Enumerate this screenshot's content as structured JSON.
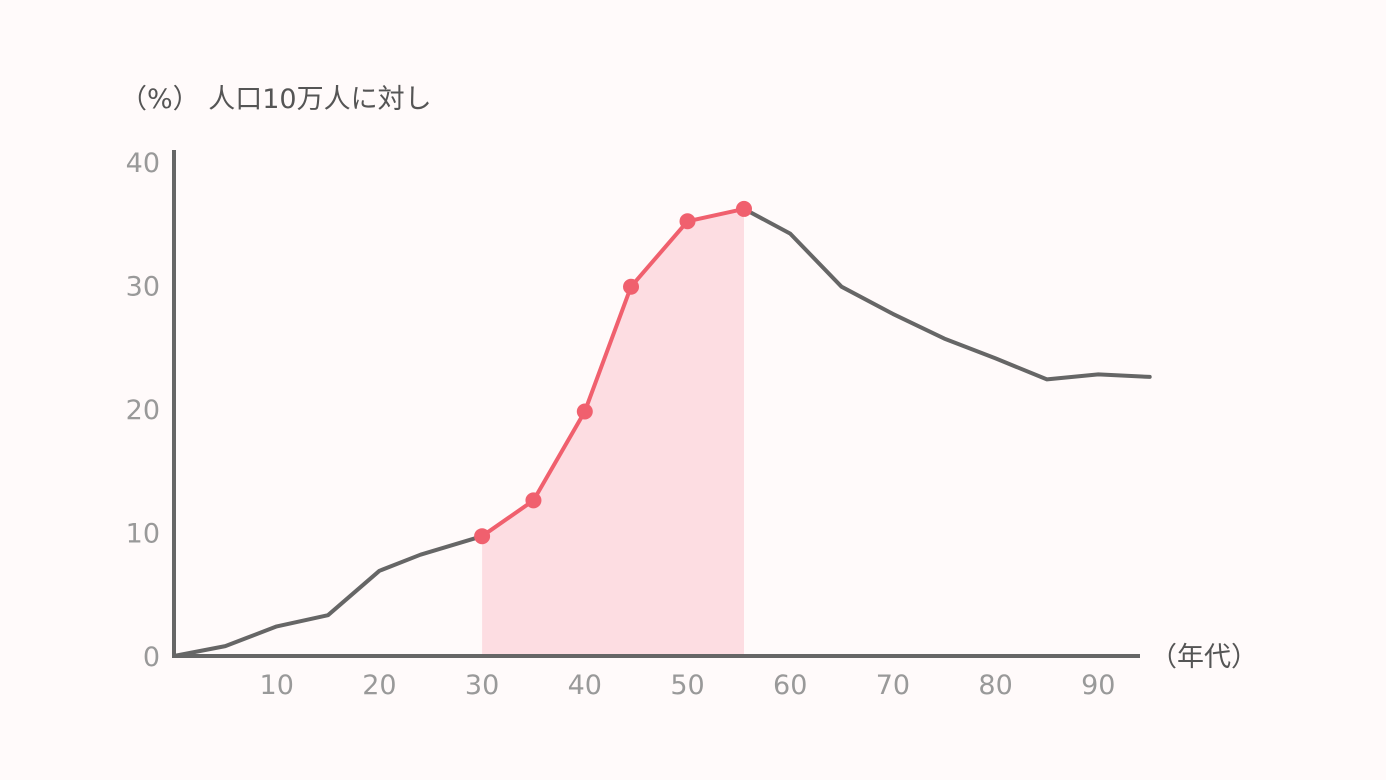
{
  "chart_data": {
    "type": "line",
    "title": "",
    "ylabel": "（%） 人口10万人に対し",
    "xlabel": "（年代）",
    "xlim": [
      0,
      96
    ],
    "ylim": [
      0,
      40
    ],
    "x_ticks": [
      10,
      20,
      30,
      40,
      50,
      60,
      70,
      80,
      90
    ],
    "y_ticks": [
      0,
      10,
      20,
      30,
      40
    ],
    "grid": false,
    "series": [
      {
        "name": "",
        "color": "#666666",
        "points": [
          [
            0,
            0
          ],
          [
            5,
            0.8
          ],
          [
            10,
            2.4
          ],
          [
            15,
            3.3
          ],
          [
            20,
            6.9
          ],
          [
            24,
            8.2
          ],
          [
            30,
            9.7
          ]
        ]
      },
      {
        "name": "",
        "color": "#f0606e",
        "highlight": true,
        "fill": "#fddde2",
        "markers": true,
        "points": [
          [
            30,
            9.7
          ],
          [
            35,
            12.6
          ],
          [
            40,
            19.8
          ],
          [
            44.5,
            29.9
          ],
          [
            50,
            35.2
          ],
          [
            55.5,
            36.2
          ]
        ]
      },
      {
        "name": "",
        "color": "#666666",
        "points": [
          [
            55.5,
            36.2
          ],
          [
            60,
            34.2
          ],
          [
            65,
            29.9
          ],
          [
            70,
            27.7
          ],
          [
            75,
            25.7
          ],
          [
            80,
            24.1
          ],
          [
            85,
            22.4
          ],
          [
            90,
            22.8
          ],
          [
            95,
            22.6
          ]
        ]
      }
    ]
  }
}
